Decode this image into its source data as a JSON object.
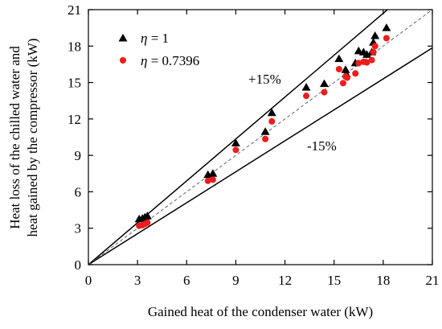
{
  "chart_data": {
    "type": "scatter",
    "xlabel": "Gained heat of the condenser water (kW)",
    "ylabel_lines": [
      "Heat loss of the chilled water and",
      "heat gained by  the compressor (kW)"
    ],
    "xlim": [
      0,
      21
    ],
    "ylim": [
      0,
      21
    ],
    "xticks": [
      0,
      3,
      6,
      9,
      12,
      15,
      18,
      21
    ],
    "yticks": [
      0,
      3,
      6,
      9,
      12,
      15,
      18,
      21
    ],
    "grid": false,
    "legend_position": "top-left",
    "series": [
      {
        "name_prefix": "η",
        "name_value": " = 1",
        "marker": "triangle",
        "color": "#000000",
        "points": [
          [
            3.1,
            3.75
          ],
          [
            3.3,
            3.8
          ],
          [
            3.45,
            3.9
          ],
          [
            3.6,
            4.0
          ],
          [
            7.3,
            7.4
          ],
          [
            7.6,
            7.5
          ],
          [
            9.0,
            10.0
          ],
          [
            10.8,
            10.95
          ],
          [
            11.2,
            12.5
          ],
          [
            13.3,
            14.6
          ],
          [
            14.4,
            14.9
          ],
          [
            15.3,
            16.95
          ],
          [
            15.7,
            16.05
          ],
          [
            15.75,
            15.7
          ],
          [
            16.3,
            16.6
          ],
          [
            16.5,
            17.6
          ],
          [
            16.8,
            17.5
          ],
          [
            17.0,
            17.3
          ],
          [
            17.3,
            17.5
          ],
          [
            17.4,
            18.3
          ],
          [
            17.5,
            18.85
          ],
          [
            18.2,
            19.5
          ]
        ]
      },
      {
        "name_prefix": "η",
        "name_value": " = 0.7396",
        "marker": "circle",
        "color": "#ee1c1c",
        "points": [
          [
            3.1,
            3.2
          ],
          [
            3.3,
            3.25
          ],
          [
            3.45,
            3.35
          ],
          [
            3.6,
            3.45
          ],
          [
            7.3,
            6.9
          ],
          [
            7.6,
            7.0
          ],
          [
            9.0,
            9.45
          ],
          [
            10.8,
            10.35
          ],
          [
            11.2,
            11.8
          ],
          [
            13.3,
            13.9
          ],
          [
            14.4,
            14.2
          ],
          [
            15.3,
            16.1
          ],
          [
            15.55,
            14.95
          ],
          [
            15.7,
            15.5
          ],
          [
            15.8,
            15.4
          ],
          [
            16.3,
            15.75
          ],
          [
            16.5,
            16.6
          ],
          [
            16.8,
            16.7
          ],
          [
            17.0,
            16.65
          ],
          [
            17.3,
            16.85
          ],
          [
            17.4,
            17.5
          ],
          [
            17.5,
            18.0
          ],
          [
            18.2,
            18.65
          ]
        ]
      }
    ],
    "reference_lines": [
      {
        "slope": 1.15,
        "style": "solid",
        "label": "+15%"
      },
      {
        "slope": 0.85,
        "style": "solid",
        "label": "-15%"
      },
      {
        "slope": 1.0,
        "style": "dashed",
        "label": ""
      }
    ]
  }
}
